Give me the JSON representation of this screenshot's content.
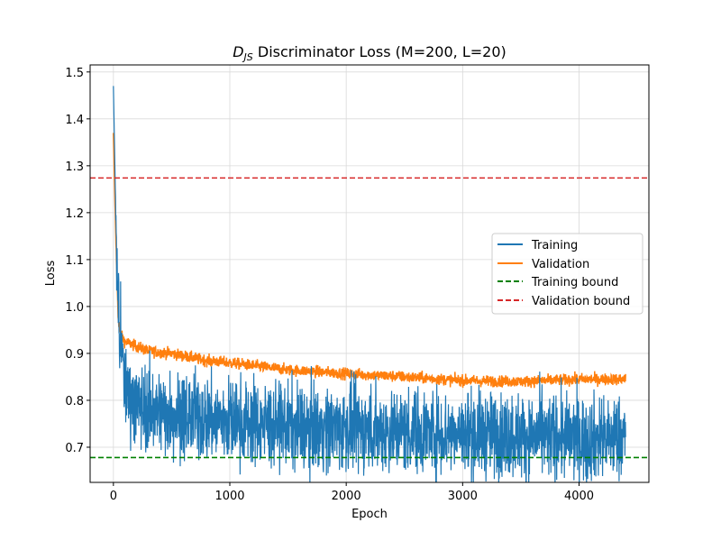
{
  "chart_data": {
    "type": "line",
    "title_main": "D",
    "title_sub": "JS",
    "title_rest": " Discriminator Loss (M=200, L=20)",
    "xlabel": "Epoch",
    "ylabel": "Loss",
    "xlim": [
      -200,
      4600
    ],
    "ylim": [
      0.625,
      1.515
    ],
    "xticks": [
      0,
      1000,
      2000,
      3000,
      4000
    ],
    "yticks": [
      0.7,
      0.8,
      0.9,
      1.0,
      1.1,
      1.2,
      1.3,
      1.4,
      1.5
    ],
    "grid": true,
    "legend_position": "center-right",
    "series": [
      {
        "name": "Training",
        "color": "#1f77b4",
        "style": "solid",
        "epochs": 4400,
        "start": 1.47,
        "trend": [
          [
            0,
            1.47
          ],
          [
            20,
            1.2
          ],
          [
            40,
            1.0
          ],
          [
            60,
            0.93
          ],
          [
            100,
            0.83
          ],
          [
            200,
            0.79
          ],
          [
            500,
            0.77
          ],
          [
            1000,
            0.755
          ],
          [
            1500,
            0.745
          ],
          [
            2000,
            0.74
          ],
          [
            2500,
            0.735
          ],
          [
            3000,
            0.73
          ],
          [
            3500,
            0.725
          ],
          [
            4000,
            0.72
          ],
          [
            4400,
            0.72
          ]
        ],
        "noise": 0.045
      },
      {
        "name": "Validation",
        "color": "#ff7f0e",
        "style": "solid",
        "epochs": 4400,
        "start": 1.37,
        "trend": [
          [
            0,
            1.37
          ],
          [
            20,
            1.15
          ],
          [
            40,
            0.98
          ],
          [
            60,
            0.94
          ],
          [
            100,
            0.925
          ],
          [
            300,
            0.905
          ],
          [
            500,
            0.9
          ],
          [
            800,
            0.885
          ],
          [
            1000,
            0.88
          ],
          [
            1500,
            0.865
          ],
          [
            2000,
            0.857
          ],
          [
            2500,
            0.85
          ],
          [
            3000,
            0.842
          ],
          [
            3500,
            0.84
          ],
          [
            4000,
            0.845
          ],
          [
            4400,
            0.845
          ]
        ],
        "noise": 0.006
      },
      {
        "name": "Training bound",
        "color": "#008000",
        "style": "dashed",
        "value": 0.678
      },
      {
        "name": "Validation bound",
        "color": "#d62728",
        "style": "dashed",
        "value": 1.274
      }
    ]
  }
}
